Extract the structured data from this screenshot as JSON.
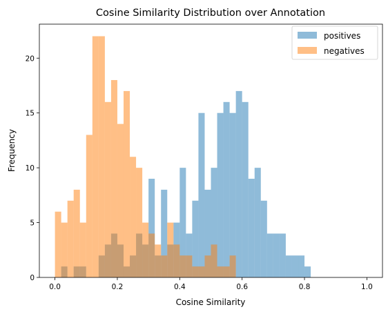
{
  "chart_data": {
    "type": "bar",
    "title": "Cosine Similarity Distribution over Annotation",
    "xlabel": "Cosine Similarity",
    "ylabel": "Frequency",
    "xlim": [
      -0.05,
      1.05
    ],
    "ylim": [
      0,
      23.1
    ],
    "xticks": [
      0.0,
      0.2,
      0.4,
      0.6,
      0.8,
      1.0
    ],
    "xtick_labels": [
      "0.0",
      "0.2",
      "0.4",
      "0.6",
      "0.8",
      "1.0"
    ],
    "yticks": [
      0,
      5,
      10,
      15,
      20
    ],
    "ytick_labels": [
      "0",
      "5",
      "10",
      "15",
      "20"
    ],
    "legend_position": "top-right",
    "bins": {
      "start": 0.0,
      "end": 1.0,
      "count": 50,
      "width": 0.02
    },
    "series": [
      {
        "name": "positives",
        "color": "#1f77b4",
        "opacity": 0.5,
        "counts": [
          0,
          1,
          0,
          1,
          1,
          0,
          0,
          2,
          3,
          4,
          3,
          1,
          2,
          4,
          3,
          9,
          2,
          8,
          3,
          5,
          10,
          4,
          7,
          15,
          8,
          10,
          15,
          16,
          15,
          17,
          16,
          9,
          10,
          7,
          4,
          4,
          4,
          2,
          2,
          2,
          1,
          0,
          0,
          0,
          0,
          0,
          0,
          0,
          0,
          0
        ]
      },
      {
        "name": "negatives",
        "color": "#ff7f0e",
        "opacity": 0.5,
        "counts": [
          6,
          5,
          7,
          8,
          5,
          13,
          22,
          22,
          16,
          18,
          14,
          17,
          11,
          10,
          5,
          4,
          3,
          2,
          5,
          3,
          2,
          2,
          1,
          1,
          2,
          3,
          1,
          1,
          2,
          0,
          0,
          0,
          0,
          0,
          0,
          0,
          0,
          0,
          0,
          0,
          0,
          0,
          0,
          0,
          0,
          0,
          0,
          0,
          0,
          0
        ]
      }
    ]
  }
}
